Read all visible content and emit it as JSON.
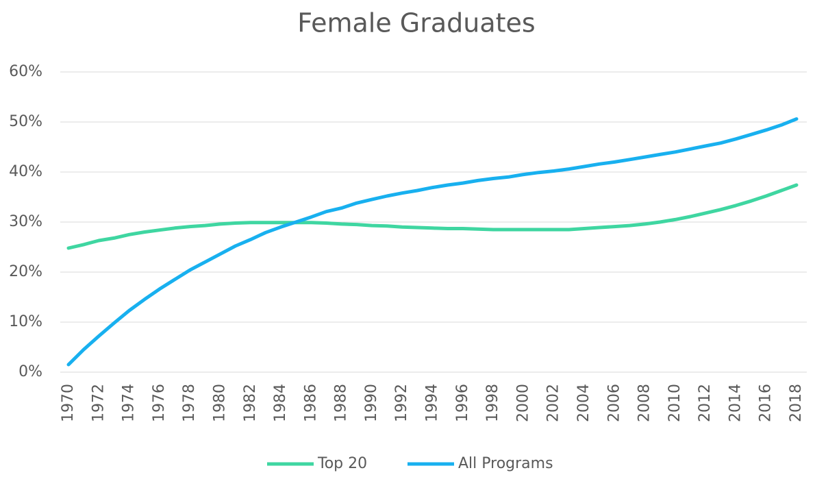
{
  "chart_data": {
    "type": "line",
    "title": "Female Graduates",
    "categories": [
      "1970",
      null,
      "1972",
      null,
      "1974",
      null,
      "1976",
      null,
      "1978",
      null,
      "1980",
      null,
      "1982",
      null,
      "1984",
      null,
      "1986",
      null,
      "1988",
      null,
      "1990",
      null,
      "1992",
      null,
      "1994",
      null,
      "1996",
      null,
      "1998",
      null,
      "2000",
      null,
      "2002",
      null,
      "2004",
      null,
      "2006",
      null,
      "2008",
      null,
      "2010",
      null,
      "2012",
      null,
      "2014",
      null,
      "2016",
      null,
      "2018"
    ],
    "series": [
      {
        "name": "Top 20",
        "color": "#3fd6a1",
        "values": [
          24.8,
          25.5,
          26.3,
          26.8,
          27.5,
          28.0,
          28.4,
          28.8,
          29.1,
          29.3,
          29.6,
          29.8,
          29.9,
          29.9,
          29.9,
          29.9,
          29.9,
          29.8,
          29.6,
          29.5,
          29.3,
          29.2,
          29.0,
          28.9,
          28.8,
          28.7,
          28.7,
          28.6,
          28.5,
          28.5,
          28.5,
          28.5,
          28.5,
          28.5,
          28.7,
          28.9,
          29.1,
          29.3,
          29.6,
          30.0,
          30.5,
          31.1,
          31.8,
          32.5,
          33.3,
          34.2,
          35.2,
          36.3,
          37.4
        ]
      },
      {
        "name": "All Programs",
        "color": "#18b0ef",
        "values": [
          1.5,
          4.5,
          7.2,
          9.8,
          12.3,
          14.5,
          16.6,
          18.5,
          20.4,
          22.0,
          23.6,
          25.2,
          26.5,
          27.9,
          29.0,
          30.0,
          31.0,
          32.1,
          32.8,
          33.8,
          34.5,
          35.2,
          35.8,
          36.3,
          36.9,
          37.4,
          37.8,
          38.3,
          38.7,
          39.0,
          39.5,
          39.9,
          40.2,
          40.6,
          41.1,
          41.6,
          42.0,
          42.5,
          43.0,
          43.5,
          44.0,
          44.6,
          45.2,
          45.8,
          46.6,
          47.5,
          48.4,
          49.4,
          50.6
        ]
      }
    ],
    "ylim": [
      0,
      60
    ],
    "yticks": [
      {
        "value": 0,
        "label": "0%"
      },
      {
        "value": 10,
        "label": "10%"
      },
      {
        "value": 20,
        "label": "20%"
      },
      {
        "value": 30,
        "label": "30%"
      },
      {
        "value": 40,
        "label": "40%"
      },
      {
        "value": 50,
        "label": "50%"
      },
      {
        "value": 60,
        "label": "60%"
      }
    ],
    "grid": true,
    "legend": "bottom"
  }
}
